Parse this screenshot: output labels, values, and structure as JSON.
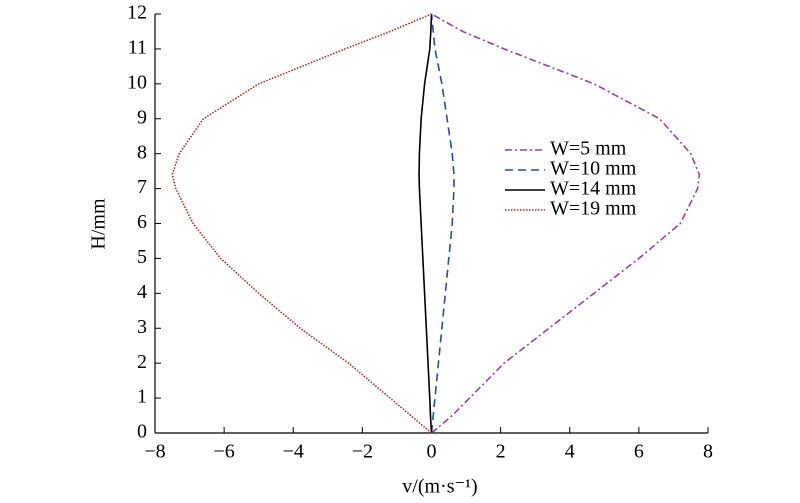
{
  "chart_data": {
    "type": "line",
    "xlabel": "v/(m·s⁻¹)",
    "ylabel": "H/mm",
    "y": [
      0,
      0.5,
      1,
      2,
      3,
      4,
      5,
      6,
      7,
      7.4,
      8,
      9,
      10,
      11,
      11.5,
      12
    ],
    "series": [
      {
        "name": "W=5 mm",
        "color": "#9b3fa3",
        "style": "dashdot",
        "x": [
          0,
          0.6,
          1.1,
          2.1,
          3.4,
          4.7,
          6.0,
          7.2,
          7.7,
          7.75,
          7.5,
          6.6,
          4.7,
          2.1,
          0.9,
          0
        ]
      },
      {
        "name": "W=10 mm",
        "color": "#2b4c9b",
        "style": "dashed",
        "x": [
          0,
          0.05,
          0.1,
          0.2,
          0.3,
          0.4,
          0.5,
          0.6,
          0.65,
          0.65,
          0.6,
          0.45,
          0.3,
          0.1,
          0.05,
          0
        ]
      },
      {
        "name": "W=14 mm",
        "color": "#000000",
        "style": "solid",
        "x": [
          0,
          -0.03,
          -0.05,
          -0.1,
          -0.15,
          -0.2,
          -0.25,
          -0.3,
          -0.35,
          -0.36,
          -0.35,
          -0.3,
          -0.2,
          -0.05,
          -0.02,
          0
        ]
      },
      {
        "name": "W=19 mm",
        "color": "#b0282a",
        "style": "dotted",
        "x": [
          0,
          -0.6,
          -1.2,
          -2.4,
          -3.8,
          -5.0,
          -6.1,
          -6.9,
          -7.4,
          -7.5,
          -7.3,
          -6.6,
          -5.0,
          -2.5,
          -1.2,
          0
        ]
      }
    ],
    "xlim": [
      -8,
      8
    ],
    "xticks": [
      {
        "value": -8,
        "label": "−8"
      },
      {
        "value": -6,
        "label": "−6"
      },
      {
        "value": -4,
        "label": "−4"
      },
      {
        "value": -2,
        "label": "−2"
      },
      0,
      2,
      4,
      6,
      8
    ],
    "ylim": [
      0,
      12
    ],
    "yticks": [
      0,
      1,
      2,
      3,
      4,
      5,
      6,
      7,
      8,
      9,
      10,
      11,
      12
    ]
  }
}
